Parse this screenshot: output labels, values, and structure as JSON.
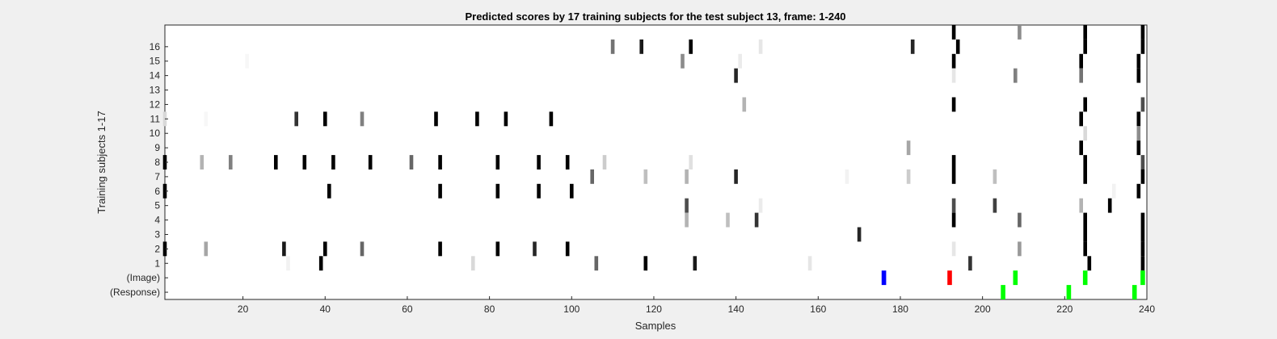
{
  "chart_data": {
    "type": "heatmap",
    "title": "Predicted scores by 17 training subjects for the test subject 13, frame: 1-240",
    "xlabel": "Samples",
    "ylabel": "Training subjects 1-17",
    "xlim": [
      1,
      240
    ],
    "xticks": [
      20,
      40,
      60,
      80,
      100,
      120,
      140,
      160,
      180,
      200,
      220,
      240
    ],
    "row_labels": [
      "(Response)",
      "(Image)",
      "1",
      "2",
      "3",
      "4",
      "5",
      "6",
      "7",
      "8",
      "9",
      "10",
      "11",
      "12",
      "13",
      "14",
      "15",
      "16",
      ""
    ],
    "colormap": "grayscale: 0 = white, 1 = black",
    "subjects": [
      {
        "subject": 17,
        "marks": [
          [
            193,
            1
          ],
          [
            209,
            0.45
          ],
          [
            225,
            1
          ],
          [
            239,
            1
          ]
        ]
      },
      {
        "subject": 16,
        "marks": [
          [
            110,
            0.55
          ],
          [
            117,
            0.9
          ],
          [
            129,
            1
          ],
          [
            146,
            0.1
          ],
          [
            183,
            0.85
          ],
          [
            194,
            1
          ],
          [
            225,
            1
          ],
          [
            239,
            1
          ]
        ]
      },
      {
        "subject": 15,
        "marks": [
          [
            21,
            0.03
          ],
          [
            127,
            0.45
          ],
          [
            141,
            0.08
          ],
          [
            193,
            1
          ],
          [
            224,
            1
          ],
          [
            238,
            1
          ]
        ]
      },
      {
        "subject": 14,
        "marks": [
          [
            140,
            0.85
          ],
          [
            193,
            0.1
          ],
          [
            208,
            0.5
          ],
          [
            224,
            0.55
          ],
          [
            238,
            1
          ]
        ]
      },
      {
        "subject": 13,
        "marks": []
      },
      {
        "subject": 12,
        "marks": [
          [
            142,
            0.3
          ],
          [
            193,
            1
          ],
          [
            225,
            1
          ],
          [
            239,
            0.7
          ]
        ]
      },
      {
        "subject": 11,
        "marks": [
          [
            1,
            0.15
          ],
          [
            11,
            0.03
          ],
          [
            33,
            0.8
          ],
          [
            40,
            1
          ],
          [
            49,
            0.5
          ],
          [
            67,
            1
          ],
          [
            77,
            1
          ],
          [
            84,
            1
          ],
          [
            95,
            1
          ],
          [
            224,
            1
          ],
          [
            238,
            1
          ]
        ]
      },
      {
        "subject": 10,
        "marks": [
          [
            225,
            0.15
          ],
          [
            238,
            0.45
          ]
        ]
      },
      {
        "subject": 9,
        "marks": [
          [
            182,
            0.35
          ],
          [
            224,
            1
          ],
          [
            238,
            1
          ]
        ]
      },
      {
        "subject": 8,
        "marks": [
          [
            1,
            1
          ],
          [
            10,
            0.3
          ],
          [
            17,
            0.5
          ],
          [
            28,
            1
          ],
          [
            35,
            1
          ],
          [
            42,
            1
          ],
          [
            51,
            1
          ],
          [
            61,
            0.6
          ],
          [
            68,
            1
          ],
          [
            82,
            1
          ],
          [
            92,
            1
          ],
          [
            99,
            1
          ],
          [
            108,
            0.2
          ],
          [
            129,
            0.12
          ],
          [
            193,
            1
          ],
          [
            225,
            1
          ],
          [
            239,
            0.7
          ]
        ]
      },
      {
        "subject": 7,
        "marks": [
          [
            105,
            0.6
          ],
          [
            118,
            0.25
          ],
          [
            128,
            0.3
          ],
          [
            140,
            0.85
          ],
          [
            167,
            0.05
          ],
          [
            182,
            0.2
          ],
          [
            193,
            1
          ],
          [
            203,
            0.25
          ],
          [
            225,
            1
          ],
          [
            239,
            1
          ]
        ]
      },
      {
        "subject": 6,
        "marks": [
          [
            1,
            1
          ],
          [
            41,
            1
          ],
          [
            68,
            1
          ],
          [
            82,
            1
          ],
          [
            92,
            1
          ],
          [
            100,
            1
          ],
          [
            232,
            0.05
          ],
          [
            238,
            1
          ]
        ]
      },
      {
        "subject": 5,
        "marks": [
          [
            128,
            0.7
          ],
          [
            146,
            0.08
          ],
          [
            193,
            0.7
          ],
          [
            203,
            0.75
          ],
          [
            224,
            0.3
          ],
          [
            231,
            1
          ]
        ]
      },
      {
        "subject": 4,
        "marks": [
          [
            128,
            0.3
          ],
          [
            138,
            0.25
          ],
          [
            145,
            0.8
          ],
          [
            193,
            1
          ],
          [
            209,
            0.6
          ],
          [
            225,
            1
          ],
          [
            239,
            1
          ]
        ]
      },
      {
        "subject": 3,
        "marks": [
          [
            170,
            0.85
          ],
          [
            225,
            1
          ],
          [
            239,
            1
          ]
        ]
      },
      {
        "subject": 2,
        "marks": [
          [
            1,
            1
          ],
          [
            11,
            0.35
          ],
          [
            30,
            0.9
          ],
          [
            40,
            1
          ],
          [
            49,
            0.6
          ],
          [
            68,
            1
          ],
          [
            82,
            1
          ],
          [
            91,
            0.85
          ],
          [
            99,
            1
          ],
          [
            193,
            0.1
          ],
          [
            209,
            0.4
          ],
          [
            225,
            1
          ],
          [
            239,
            1
          ]
        ]
      },
      {
        "subject": 1,
        "marks": [
          [
            31,
            0.05
          ],
          [
            39,
            1
          ],
          [
            76,
            0.15
          ],
          [
            106,
            0.6
          ],
          [
            118,
            1
          ],
          [
            130,
            0.9
          ],
          [
            158,
            0.1
          ],
          [
            197,
            0.8
          ],
          [
            226,
            1
          ],
          [
            239,
            1
          ]
        ]
      }
    ],
    "image_events": [
      {
        "x": 176,
        "color": "#0000ff"
      },
      {
        "x": 192,
        "color": "#ff0000"
      },
      {
        "x": 208,
        "color": "#00ff00"
      },
      {
        "x": 225,
        "color": "#00ff00"
      },
      {
        "x": 239,
        "color": "#00ff00"
      }
    ],
    "response_events": [
      {
        "x": 205,
        "color": "#00ff00"
      },
      {
        "x": 221,
        "color": "#00ff00"
      },
      {
        "x": 237,
        "color": "#00ff00"
      }
    ]
  }
}
